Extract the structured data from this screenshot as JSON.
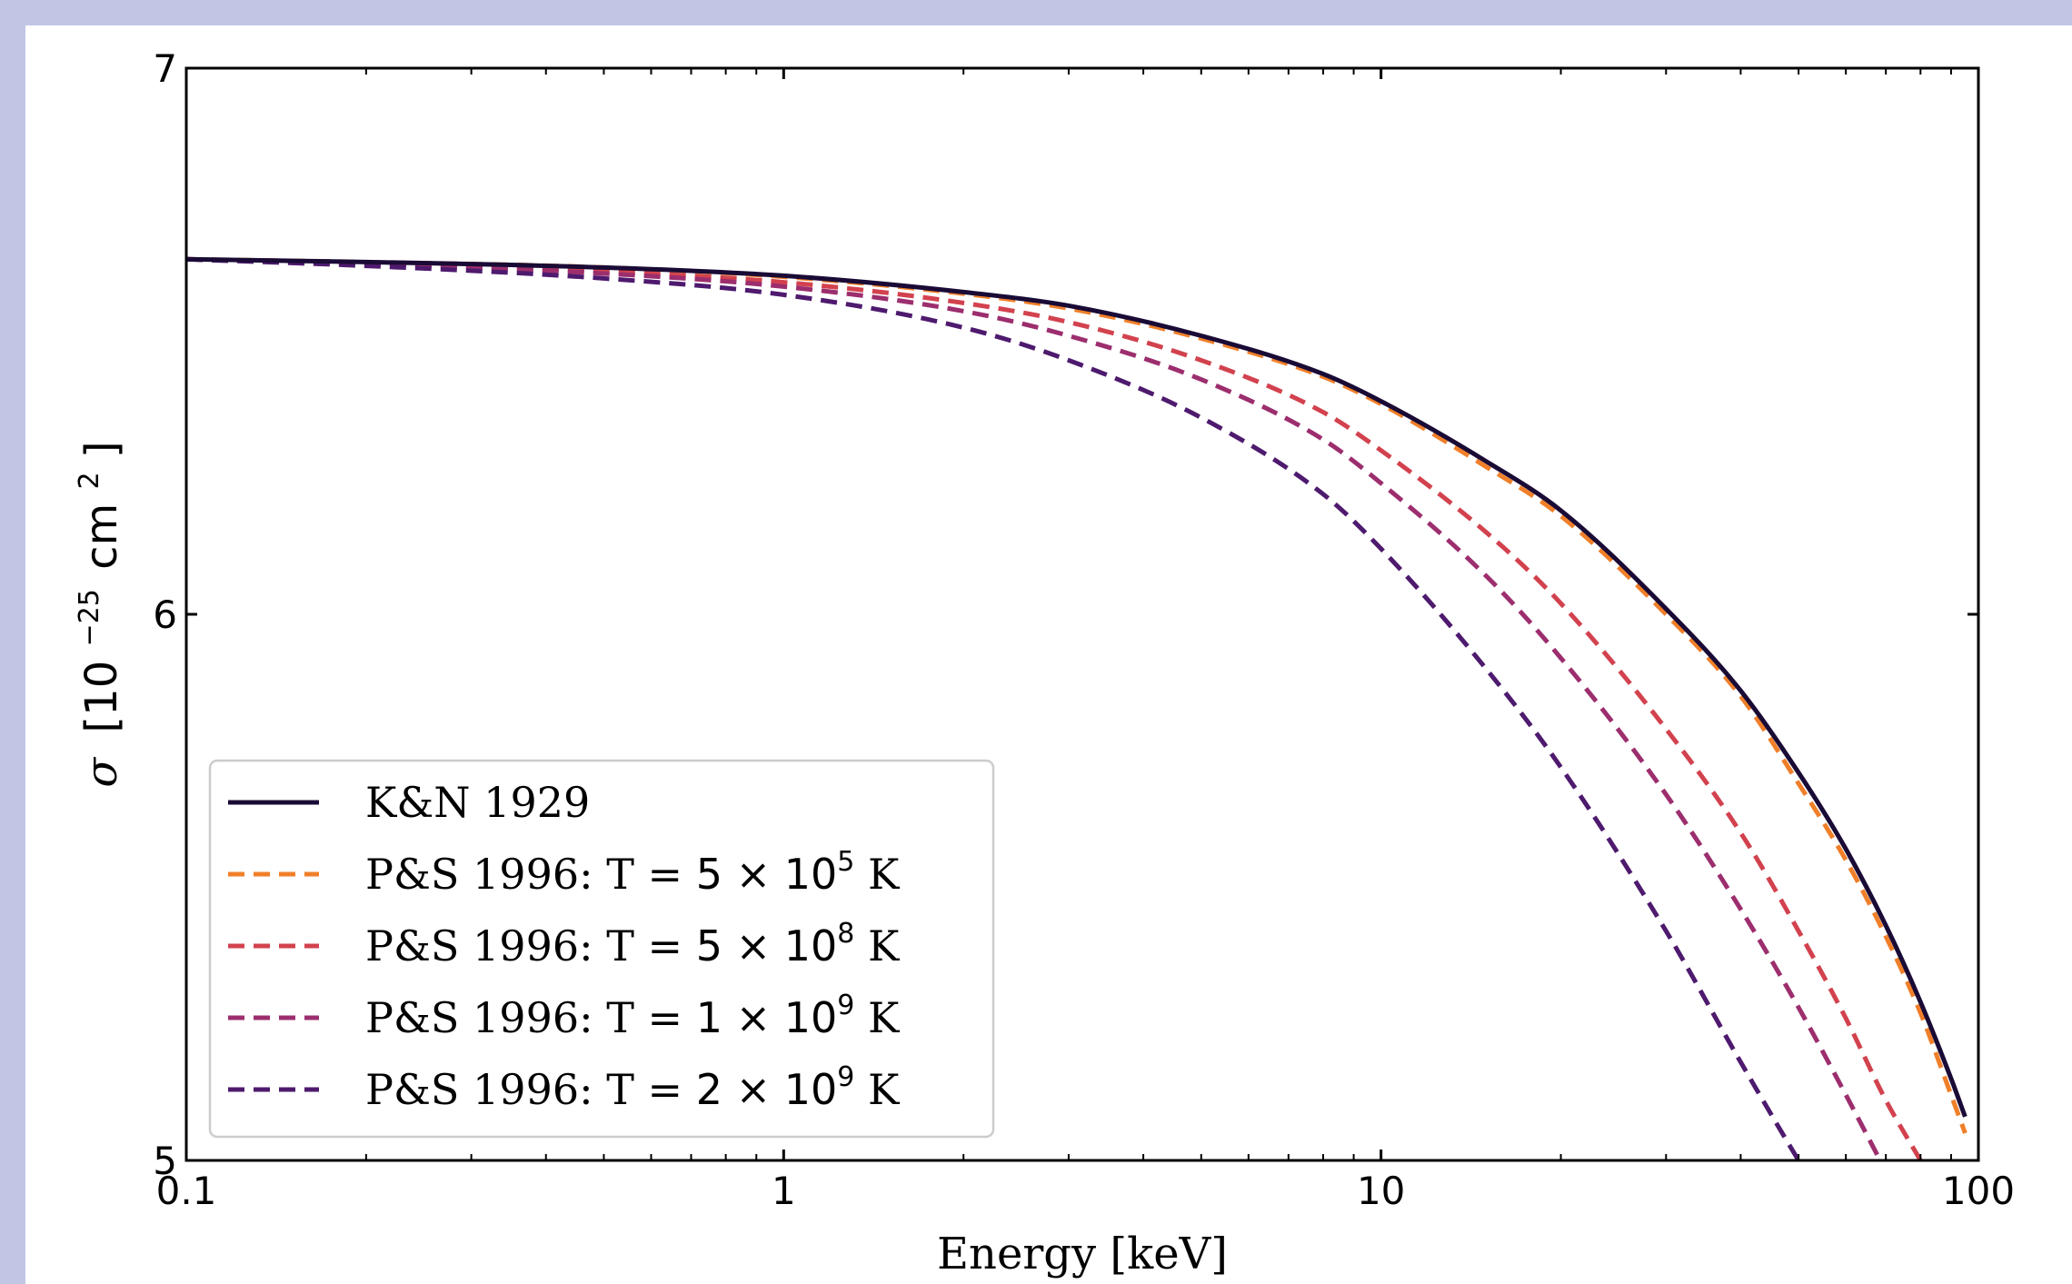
{
  "chart_data": {
    "type": "line",
    "xlabel": "Energy [keV]",
    "ylabel": {
      "symbol": "σ",
      "bracket_open": "[10",
      "exp": "−25",
      "unit": "cm",
      "unit_exp": "2",
      "bracket_close": "]"
    },
    "xscale": "log",
    "xlim": [
      0.1,
      100
    ],
    "ylim": [
      5,
      7
    ],
    "x_ticks": [
      {
        "value": 0.1,
        "label": "0.1"
      },
      {
        "value": 1,
        "label": "1"
      },
      {
        "value": 10,
        "label": "10"
      },
      {
        "value": 100,
        "label": "100"
      }
    ],
    "y_ticks": [
      {
        "value": 5,
        "label": "5"
      },
      {
        "value": 6,
        "label": "6"
      },
      {
        "value": 7,
        "label": "7"
      }
    ],
    "grid": false,
    "legend_position": "lower-left",
    "series": [
      {
        "name": "K&N 1929",
        "legend": {
          "prefix": "K&N 1929",
          "coef": "",
          "exp": "",
          "suffix": ""
        },
        "style": "solid",
        "color": "#1a0b36",
        "x": [
          0.1,
          0.2,
          0.5,
          1,
          2,
          3,
          5,
          8,
          10,
          15,
          20,
          30,
          40,
          50,
          60,
          70,
          80,
          90,
          95
        ],
        "y": [
          6.65,
          6.645,
          6.635,
          6.62,
          6.59,
          6.565,
          6.51,
          6.44,
          6.39,
          6.28,
          6.19,
          6.01,
          5.86,
          5.71,
          5.57,
          5.43,
          5.29,
          5.15,
          5.08
        ]
      },
      {
        "name": "P&S 1996: T = 5 × 10^5 K",
        "legend": {
          "prefix": "P&S 1996: T = ",
          "coef": "5 × 10",
          "exp": "5",
          "suffix": " K"
        },
        "style": "dashed",
        "color": "#f07f2a",
        "x": [
          0.1,
          0.2,
          0.5,
          1,
          2,
          3,
          5,
          8,
          10,
          15,
          20,
          30,
          40,
          50,
          60,
          70,
          80,
          90,
          95
        ],
        "y": [
          6.65,
          6.645,
          6.635,
          6.618,
          6.587,
          6.56,
          6.505,
          6.435,
          6.385,
          6.27,
          6.18,
          6.0,
          5.85,
          5.69,
          5.55,
          5.41,
          5.27,
          5.12,
          5.05
        ]
      },
      {
        "name": "P&S 1996: T = 5 × 10^8 K",
        "legend": {
          "prefix": "P&S 1996: T = ",
          "coef": "5 × 10",
          "exp": "8",
          "suffix": " K"
        },
        "style": "dashed",
        "color": "#d2424e",
        "x": [
          0.1,
          0.2,
          0.5,
          1,
          2,
          3,
          5,
          8,
          10,
          15,
          20,
          30,
          40,
          50,
          60,
          70,
          80
        ],
        "y": [
          6.65,
          6.643,
          6.628,
          6.608,
          6.57,
          6.535,
          6.465,
          6.37,
          6.3,
          6.15,
          6.02,
          5.79,
          5.6,
          5.42,
          5.26,
          5.11,
          5.0
        ]
      },
      {
        "name": "P&S 1996: T = 1 × 10^9 K",
        "legend": {
          "prefix": "P&S 1996: T = ",
          "coef": "1 × 10",
          "exp": "9",
          "suffix": " K"
        },
        "style": "dashed",
        "color": "#9c2e6e",
        "x": [
          0.1,
          0.2,
          0.5,
          1,
          2,
          3,
          5,
          8,
          10,
          15,
          20,
          30,
          40,
          50,
          60,
          70
        ],
        "y": [
          6.65,
          6.642,
          6.624,
          6.6,
          6.555,
          6.51,
          6.43,
          6.32,
          6.24,
          6.07,
          5.92,
          5.67,
          5.46,
          5.28,
          5.12,
          4.98
        ]
      },
      {
        "name": "P&S 1996: T = 2 × 10^9 K",
        "legend": {
          "prefix": "P&S 1996: T = ",
          "coef": "2 × 10",
          "exp": "9",
          "suffix": " K"
        },
        "style": "dashed",
        "color": "#4e1a6e",
        "x": [
          0.1,
          0.2,
          0.5,
          1,
          2,
          3,
          5,
          8,
          10,
          15,
          20,
          30,
          40,
          50,
          52
        ],
        "y": [
          6.65,
          6.638,
          6.615,
          6.585,
          6.525,
          6.465,
          6.36,
          6.22,
          6.12,
          5.9,
          5.72,
          5.42,
          5.18,
          5.0,
          4.97
        ]
      }
    ]
  }
}
